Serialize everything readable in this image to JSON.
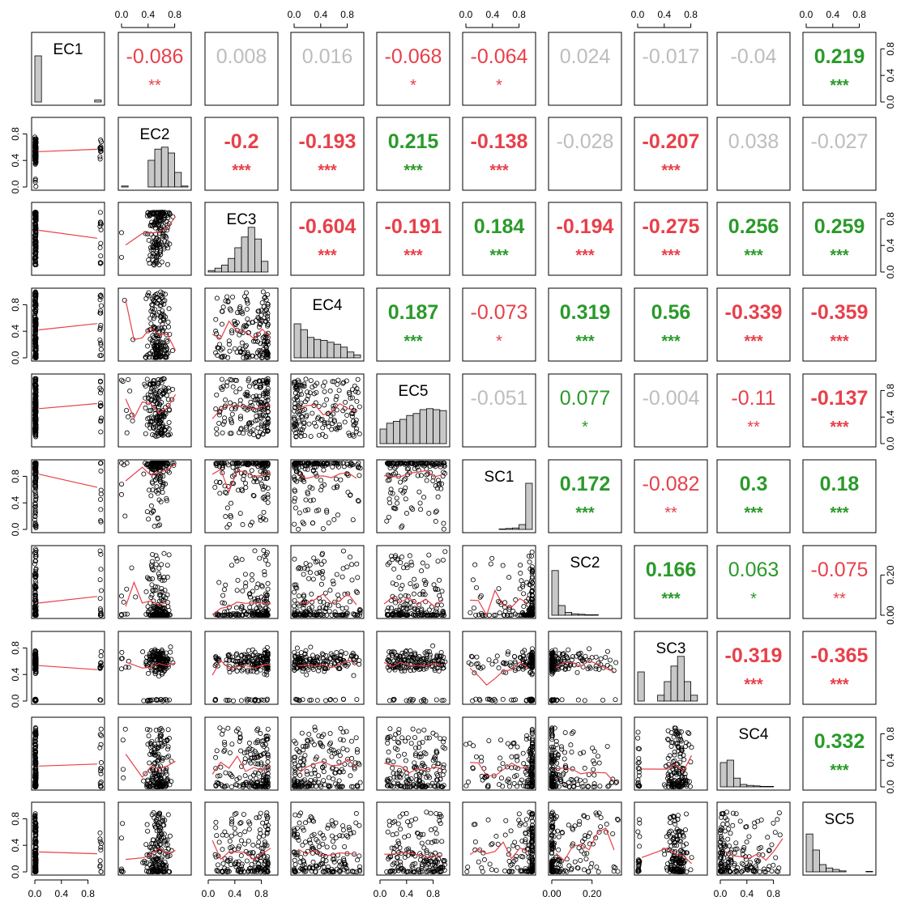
{
  "chart_data": {
    "type": "scatterplot-matrix",
    "title": "",
    "variables": [
      "EC1",
      "EC2",
      "EC3",
      "EC4",
      "EC5",
      "SC1",
      "SC2",
      "SC3",
      "SC4",
      "SC5"
    ],
    "colors": {
      "positive": "#2a9a2a",
      "negative": "#e8404a",
      "insignificant": "#bdbdbd",
      "smoother": "#e8404a",
      "bars": "#c8c8c8",
      "points": "#000000"
    },
    "correlations": [
      {
        "row": 0,
        "col": 1,
        "value": "-0.086",
        "stars": "**",
        "sign": "neg",
        "sig": true,
        "bold": false
      },
      {
        "row": 0,
        "col": 2,
        "value": "0.008",
        "stars": "",
        "sign": "pos",
        "sig": false,
        "bold": false
      },
      {
        "row": 0,
        "col": 3,
        "value": "0.016",
        "stars": "",
        "sign": "pos",
        "sig": false,
        "bold": false
      },
      {
        "row": 0,
        "col": 4,
        "value": "-0.068",
        "stars": "*",
        "sign": "neg",
        "sig": true,
        "bold": false
      },
      {
        "row": 0,
        "col": 5,
        "value": "-0.064",
        "stars": "*",
        "sign": "neg",
        "sig": true,
        "bold": false
      },
      {
        "row": 0,
        "col": 6,
        "value": "0.024",
        "stars": "",
        "sign": "pos",
        "sig": false,
        "bold": false
      },
      {
        "row": 0,
        "col": 7,
        "value": "-0.017",
        "stars": "",
        "sign": "neg",
        "sig": false,
        "bold": false
      },
      {
        "row": 0,
        "col": 8,
        "value": "-0.04",
        "stars": "",
        "sign": "neg",
        "sig": false,
        "bold": false
      },
      {
        "row": 0,
        "col": 9,
        "value": "0.219",
        "stars": "***",
        "sign": "pos",
        "sig": true,
        "bold": true
      },
      {
        "row": 1,
        "col": 2,
        "value": "-0.2",
        "stars": "***",
        "sign": "neg",
        "sig": true,
        "bold": true
      },
      {
        "row": 1,
        "col": 3,
        "value": "-0.193",
        "stars": "***",
        "sign": "neg",
        "sig": true,
        "bold": true
      },
      {
        "row": 1,
        "col": 4,
        "value": "0.215",
        "stars": "***",
        "sign": "pos",
        "sig": true,
        "bold": true
      },
      {
        "row": 1,
        "col": 5,
        "value": "-0.138",
        "stars": "***",
        "sign": "neg",
        "sig": true,
        "bold": true
      },
      {
        "row": 1,
        "col": 6,
        "value": "-0.028",
        "stars": "",
        "sign": "neg",
        "sig": false,
        "bold": false
      },
      {
        "row": 1,
        "col": 7,
        "value": "-0.207",
        "stars": "***",
        "sign": "neg",
        "sig": true,
        "bold": true
      },
      {
        "row": 1,
        "col": 8,
        "value": "0.038",
        "stars": "",
        "sign": "pos",
        "sig": false,
        "bold": false
      },
      {
        "row": 1,
        "col": 9,
        "value": "-0.027",
        "stars": "",
        "sign": "neg",
        "sig": false,
        "bold": false
      },
      {
        "row": 2,
        "col": 3,
        "value": "-0.604",
        "stars": "***",
        "sign": "neg",
        "sig": true,
        "bold": true
      },
      {
        "row": 2,
        "col": 4,
        "value": "-0.191",
        "stars": "***",
        "sign": "neg",
        "sig": true,
        "bold": true
      },
      {
        "row": 2,
        "col": 5,
        "value": "0.184",
        "stars": "***",
        "sign": "pos",
        "sig": true,
        "bold": true
      },
      {
        "row": 2,
        "col": 6,
        "value": "-0.194",
        "stars": "***",
        "sign": "neg",
        "sig": true,
        "bold": true
      },
      {
        "row": 2,
        "col": 7,
        "value": "-0.275",
        "stars": "***",
        "sign": "neg",
        "sig": true,
        "bold": true
      },
      {
        "row": 2,
        "col": 8,
        "value": "0.256",
        "stars": "***",
        "sign": "pos",
        "sig": true,
        "bold": true
      },
      {
        "row": 2,
        "col": 9,
        "value": "0.259",
        "stars": "***",
        "sign": "pos",
        "sig": true,
        "bold": true
      },
      {
        "row": 3,
        "col": 4,
        "value": "0.187",
        "stars": "***",
        "sign": "pos",
        "sig": true,
        "bold": true
      },
      {
        "row": 3,
        "col": 5,
        "value": "-0.073",
        "stars": "*",
        "sign": "neg",
        "sig": true,
        "bold": false
      },
      {
        "row": 3,
        "col": 6,
        "value": "0.319",
        "stars": "***",
        "sign": "pos",
        "sig": true,
        "bold": true
      },
      {
        "row": 3,
        "col": 7,
        "value": "0.56",
        "stars": "***",
        "sign": "pos",
        "sig": true,
        "bold": true
      },
      {
        "row": 3,
        "col": 8,
        "value": "-0.339",
        "stars": "***",
        "sign": "neg",
        "sig": true,
        "bold": true
      },
      {
        "row": 3,
        "col": 9,
        "value": "-0.359",
        "stars": "***",
        "sign": "neg",
        "sig": true,
        "bold": true
      },
      {
        "row": 4,
        "col": 5,
        "value": "-0.051",
        "stars": "",
        "sign": "neg",
        "sig": false,
        "bold": false
      },
      {
        "row": 4,
        "col": 6,
        "value": "0.077",
        "stars": "*",
        "sign": "pos",
        "sig": true,
        "bold": false
      },
      {
        "row": 4,
        "col": 7,
        "value": "-0.004",
        "stars": "",
        "sign": "neg",
        "sig": false,
        "bold": false
      },
      {
        "row": 4,
        "col": 8,
        "value": "-0.11",
        "stars": "**",
        "sign": "neg",
        "sig": true,
        "bold": false
      },
      {
        "row": 4,
        "col": 9,
        "value": "-0.137",
        "stars": "***",
        "sign": "neg",
        "sig": true,
        "bold": true
      },
      {
        "row": 5,
        "col": 6,
        "value": "0.172",
        "stars": "***",
        "sign": "pos",
        "sig": true,
        "bold": true
      },
      {
        "row": 5,
        "col": 7,
        "value": "-0.082",
        "stars": "**",
        "sign": "neg",
        "sig": true,
        "bold": false
      },
      {
        "row": 5,
        "col": 8,
        "value": "0.3",
        "stars": "***",
        "sign": "pos",
        "sig": true,
        "bold": true
      },
      {
        "row": 5,
        "col": 9,
        "value": "0.18",
        "stars": "***",
        "sign": "pos",
        "sig": true,
        "bold": true
      },
      {
        "row": 6,
        "col": 7,
        "value": "0.166",
        "stars": "***",
        "sign": "pos",
        "sig": true,
        "bold": true
      },
      {
        "row": 6,
        "col": 8,
        "value": "0.063",
        "stars": "*",
        "sign": "pos",
        "sig": true,
        "bold": false
      },
      {
        "row": 6,
        "col": 9,
        "value": "-0.075",
        "stars": "**",
        "sign": "neg",
        "sig": true,
        "bold": false
      },
      {
        "row": 7,
        "col": 8,
        "value": "-0.319",
        "stars": "***",
        "sign": "neg",
        "sig": true,
        "bold": true
      },
      {
        "row": 7,
        "col": 9,
        "value": "-0.365",
        "stars": "***",
        "sign": "neg",
        "sig": true,
        "bold": true
      },
      {
        "row": 8,
        "col": 9,
        "value": "0.332",
        "stars": "***",
        "sign": "pos",
        "sig": true,
        "bold": true
      }
    ],
    "histograms": {
      "EC1": [
        0.95,
        0,
        0,
        0,
        0,
        0,
        0,
        0,
        0,
        0.04
      ],
      "EC2": [
        0.02,
        0,
        0,
        0,
        0.55,
        0.78,
        0.82,
        0.7,
        0.3,
        0.02
      ],
      "EC3": [
        0.03,
        0.08,
        0.14,
        0.28,
        0.5,
        0.72,
        0.92,
        0.68,
        0.22,
        0
      ],
      "EC4": [
        0.7,
        0.58,
        0.42,
        0.38,
        0.36,
        0.32,
        0.28,
        0.22,
        0.12,
        0.06
      ],
      "EC5": [
        0.3,
        0.42,
        0.46,
        0.5,
        0.58,
        0.62,
        0.7,
        0.72,
        0.7,
        0.68
      ],
      "SC1": [
        0,
        0,
        0,
        0,
        0,
        0.01,
        0.02,
        0.03,
        0.1,
        0.95
      ],
      "SC2": [
        0.92,
        0.2,
        0.06,
        0.03,
        0.02,
        0.01,
        0.01,
        0,
        0,
        0
      ],
      "SC3": [
        0.6,
        0,
        0,
        0.12,
        0.4,
        0.72,
        0.92,
        0.4,
        0.12,
        0
      ],
      "SC4": [
        0.5,
        0.55,
        0.18,
        0.05,
        0.03,
        0.02,
        0.01,
        0.01,
        0,
        0
      ],
      "SC5": [
        0.78,
        0.45,
        0.15,
        0.08,
        0.05,
        0.02,
        0,
        0,
        0,
        0.01
      ]
    },
    "tick_labels": {
      "EC1": [
        "0.0",
        "0.4",
        "0.8"
      ],
      "EC2": [
        "0.0",
        "0.4",
        "0.8"
      ],
      "EC3": [
        "0.0",
        "0.4",
        "0.8"
      ],
      "EC4": [
        "0.0",
        "0.4",
        "0.8"
      ],
      "EC5": [
        "0.0",
        "0.4",
        "0.8"
      ],
      "SC1": [
        "0.0",
        "0.4",
        "0.8"
      ],
      "SC2": [
        "0.00",
        "0.20"
      ],
      "SC3": [
        "0.0",
        "0.4",
        "0.8"
      ],
      "SC4": [
        "0.0",
        "0.4",
        "0.8"
      ],
      "SC5": [
        "0.0",
        "0.4",
        "0.8"
      ]
    },
    "tick_values": {
      "EC1": [
        0,
        0.4,
        0.8
      ],
      "EC2": [
        0,
        0.4,
        0.8
      ],
      "EC3": [
        0,
        0.4,
        0.8
      ],
      "EC4": [
        0,
        0.4,
        0.8
      ],
      "EC5": [
        0,
        0.4,
        0.8
      ],
      "SC1": [
        0,
        0.4,
        0.8
      ],
      "SC2": [
        0,
        0.2
      ],
      "SC3": [
        0,
        0.4,
        0.8
      ],
      "SC4": [
        0,
        0.4,
        0.8
      ],
      "SC5": [
        0,
        0.4,
        0.8
      ]
    },
    "ranges": {
      "EC1": [
        0,
        1
      ],
      "EC2": [
        0,
        1
      ],
      "EC3": [
        0,
        1
      ],
      "EC4": [
        0,
        1
      ],
      "EC5": [
        0,
        1
      ],
      "SC1": [
        0,
        1
      ],
      "SC2": [
        0,
        0.33
      ],
      "SC3": [
        0,
        1
      ],
      "SC4": [
        0,
        1
      ],
      "SC5": [
        0,
        1
      ]
    },
    "scatter_shape": {
      "EC1": "binary",
      "EC2": "mid",
      "EC3": "left-skew",
      "EC4": "right-skew",
      "EC5": "uniform",
      "SC1": "ceiling",
      "SC2": "floor",
      "SC3": "bimodal",
      "SC4": "low",
      "SC5": "low"
    }
  }
}
